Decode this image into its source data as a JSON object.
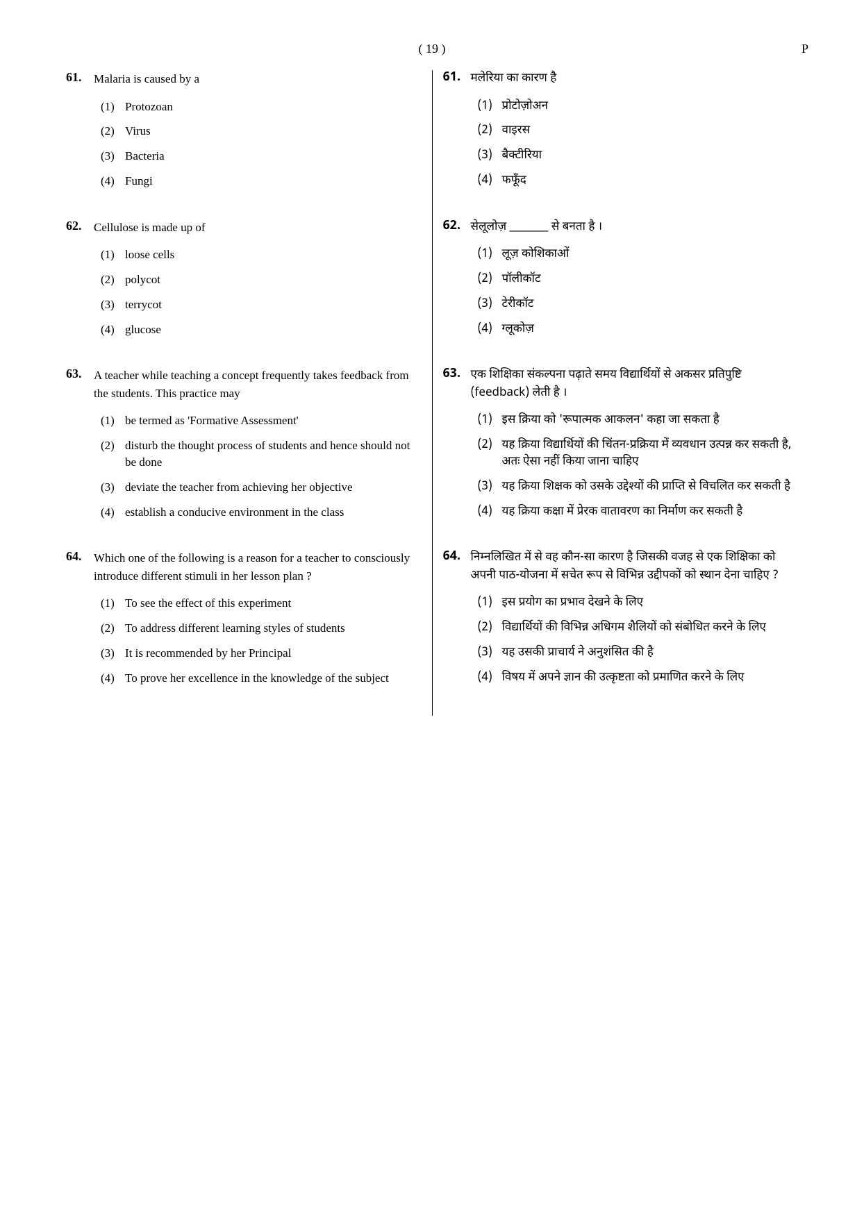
{
  "page_number": "( 19 )",
  "page_indicator": "P",
  "questions_en": [
    {
      "number": "61.",
      "stem": "Malaria is caused by a",
      "options": [
        {
          "num": "(1)",
          "text": "Protozoan"
        },
        {
          "num": "(2)",
          "text": "Virus"
        },
        {
          "num": "(3)",
          "text": "Bacteria"
        },
        {
          "num": "(4)",
          "text": "Fungi"
        }
      ]
    },
    {
      "number": "62.",
      "stem": "Cellulose is made up of",
      "options": [
        {
          "num": "(1)",
          "text": "loose cells"
        },
        {
          "num": "(2)",
          "text": "polycot"
        },
        {
          "num": "(3)",
          "text": "terrycot"
        },
        {
          "num": "(4)",
          "text": "glucose"
        }
      ]
    },
    {
      "number": "63.",
      "stem": "A teacher while teaching a concept frequently takes feedback from the students. This practice may",
      "options": [
        {
          "num": "(1)",
          "text": "be termed as 'Formative Assessment'"
        },
        {
          "num": "(2)",
          "text": "disturb the thought process of students and hence should not be done"
        },
        {
          "num": "(3)",
          "text": "deviate the teacher from achieving her objective"
        },
        {
          "num": "(4)",
          "text": "establish a conducive environment in the class"
        }
      ]
    },
    {
      "number": "64.",
      "stem": "Which one of the following is a reason for a teacher to consciously introduce different stimuli in her lesson plan ?",
      "options": [
        {
          "num": "(1)",
          "text": "To see the effect of this experiment"
        },
        {
          "num": "(2)",
          "text": "To address different learning styles of students"
        },
        {
          "num": "(3)",
          "text": "It is recommended by her Principal"
        },
        {
          "num": "(4)",
          "text": "To prove her excellence in the knowledge of the subject"
        }
      ]
    }
  ],
  "questions_hi": [
    {
      "number": "61.",
      "stem": "मलेरिया का कारण है",
      "options": [
        {
          "num": "(1)",
          "text": "प्रोटोज़ोअन"
        },
        {
          "num": "(2)",
          "text": "वाइरस"
        },
        {
          "num": "(3)",
          "text": "बैक्टीरिया"
        },
        {
          "num": "(4)",
          "text": "फफूँद"
        }
      ]
    },
    {
      "number": "62.",
      "stem": "सेलूलोज़ ________ से बनता है ।",
      "options": [
        {
          "num": "(1)",
          "text": "लूज़ कोशिकाओं"
        },
        {
          "num": "(2)",
          "text": "पॉलीकॉट"
        },
        {
          "num": "(3)",
          "text": "टेरीकॉट"
        },
        {
          "num": "(4)",
          "text": "ग्लूकोज़"
        }
      ]
    },
    {
      "number": "63.",
      "stem": "एक शिक्षिका संकल्पना पढ़ाते समय विद्यार्थियों से अकसर प्रतिपुष्टि (feedback) लेती है ।",
      "options": [
        {
          "num": "(1)",
          "text": "इस क्रिया को 'रूपात्मक आकलन' कहा जा सकता है"
        },
        {
          "num": "(2)",
          "text": "यह क्रिया विद्यार्थियों की चिंतन-प्रक्रिया में व्यवधान उत्पन्न कर सकती है, अतः ऐसा नहीं किया जाना चाहिए"
        },
        {
          "num": "(3)",
          "text": "यह क्रिया शिक्षक को उसके उद्देश्यों की प्राप्ति से विचलित कर सकती है"
        },
        {
          "num": "(4)",
          "text": "यह क्रिया कक्षा में प्रेरक वातावरण का निर्माण कर सकती है"
        }
      ]
    },
    {
      "number": "64.",
      "stem": "निम्नलिखित में से वह कौन-सा कारण है जिसकी वजह से एक शिक्षिका को अपनी पाठ-योजना में सचेत रूप से विभिन्न उद्दीपकों को स्थान देना चाहिए ?",
      "options": [
        {
          "num": "(1)",
          "text": "इस प्रयोग का प्रभाव देखने के लिए"
        },
        {
          "num": "(2)",
          "text": "विद्यार्थियों की विभिन्न अधिगम शैलियों को संबोधित करने के लिए"
        },
        {
          "num": "(3)",
          "text": "यह उसकी प्राचार्य ने अनुशंसित की है"
        },
        {
          "num": "(4)",
          "text": "विषय में अपने ज्ञान की उत्कृष्टता को प्रमाणित करने के लिए"
        }
      ]
    }
  ]
}
